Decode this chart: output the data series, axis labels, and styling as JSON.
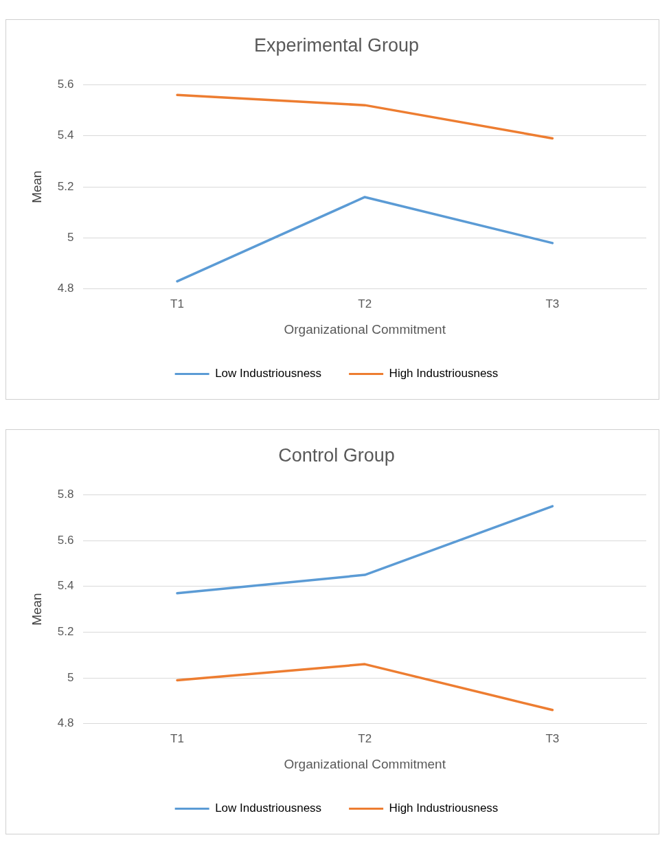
{
  "chart_data": [
    {
      "type": "line",
      "title": "Experimental Group",
      "xlabel": "Organizational Commitment",
      "ylabel": "Mean",
      "categories": [
        "T1",
        "T2",
        "T3"
      ],
      "series": [
        {
          "name": "Low Industriousness",
          "color": "#5b9bd5",
          "values": [
            4.83,
            5.16,
            4.98
          ]
        },
        {
          "name": "High Industriousness",
          "color": "#ed7d31",
          "values": [
            5.56,
            5.52,
            5.39
          ]
        }
      ],
      "ylim": [
        4.8,
        5.6
      ],
      "yticks": [
        4.8,
        5,
        5.2,
        5.4,
        5.6
      ],
      "grid": "y",
      "legend": "bottom",
      "marker": "none",
      "line_style": "solid"
    },
    {
      "type": "line",
      "title": "Control Group",
      "xlabel": "Organizational Commitment",
      "ylabel": "Mean",
      "categories": [
        "T1",
        "T2",
        "T3"
      ],
      "series": [
        {
          "name": "Low Industriousness",
          "color": "#5b9bd5",
          "values": [
            5.37,
            5.45,
            5.75
          ]
        },
        {
          "name": "High Industriousness",
          "color": "#ed7d31",
          "values": [
            4.99,
            5.06,
            4.86
          ]
        }
      ],
      "ylim": [
        4.8,
        5.8
      ],
      "yticks": [
        4.8,
        5,
        5.2,
        5.4,
        5.6,
        5.8
      ],
      "grid": "y",
      "legend": "bottom",
      "marker": "none",
      "line_style": "solid"
    }
  ]
}
